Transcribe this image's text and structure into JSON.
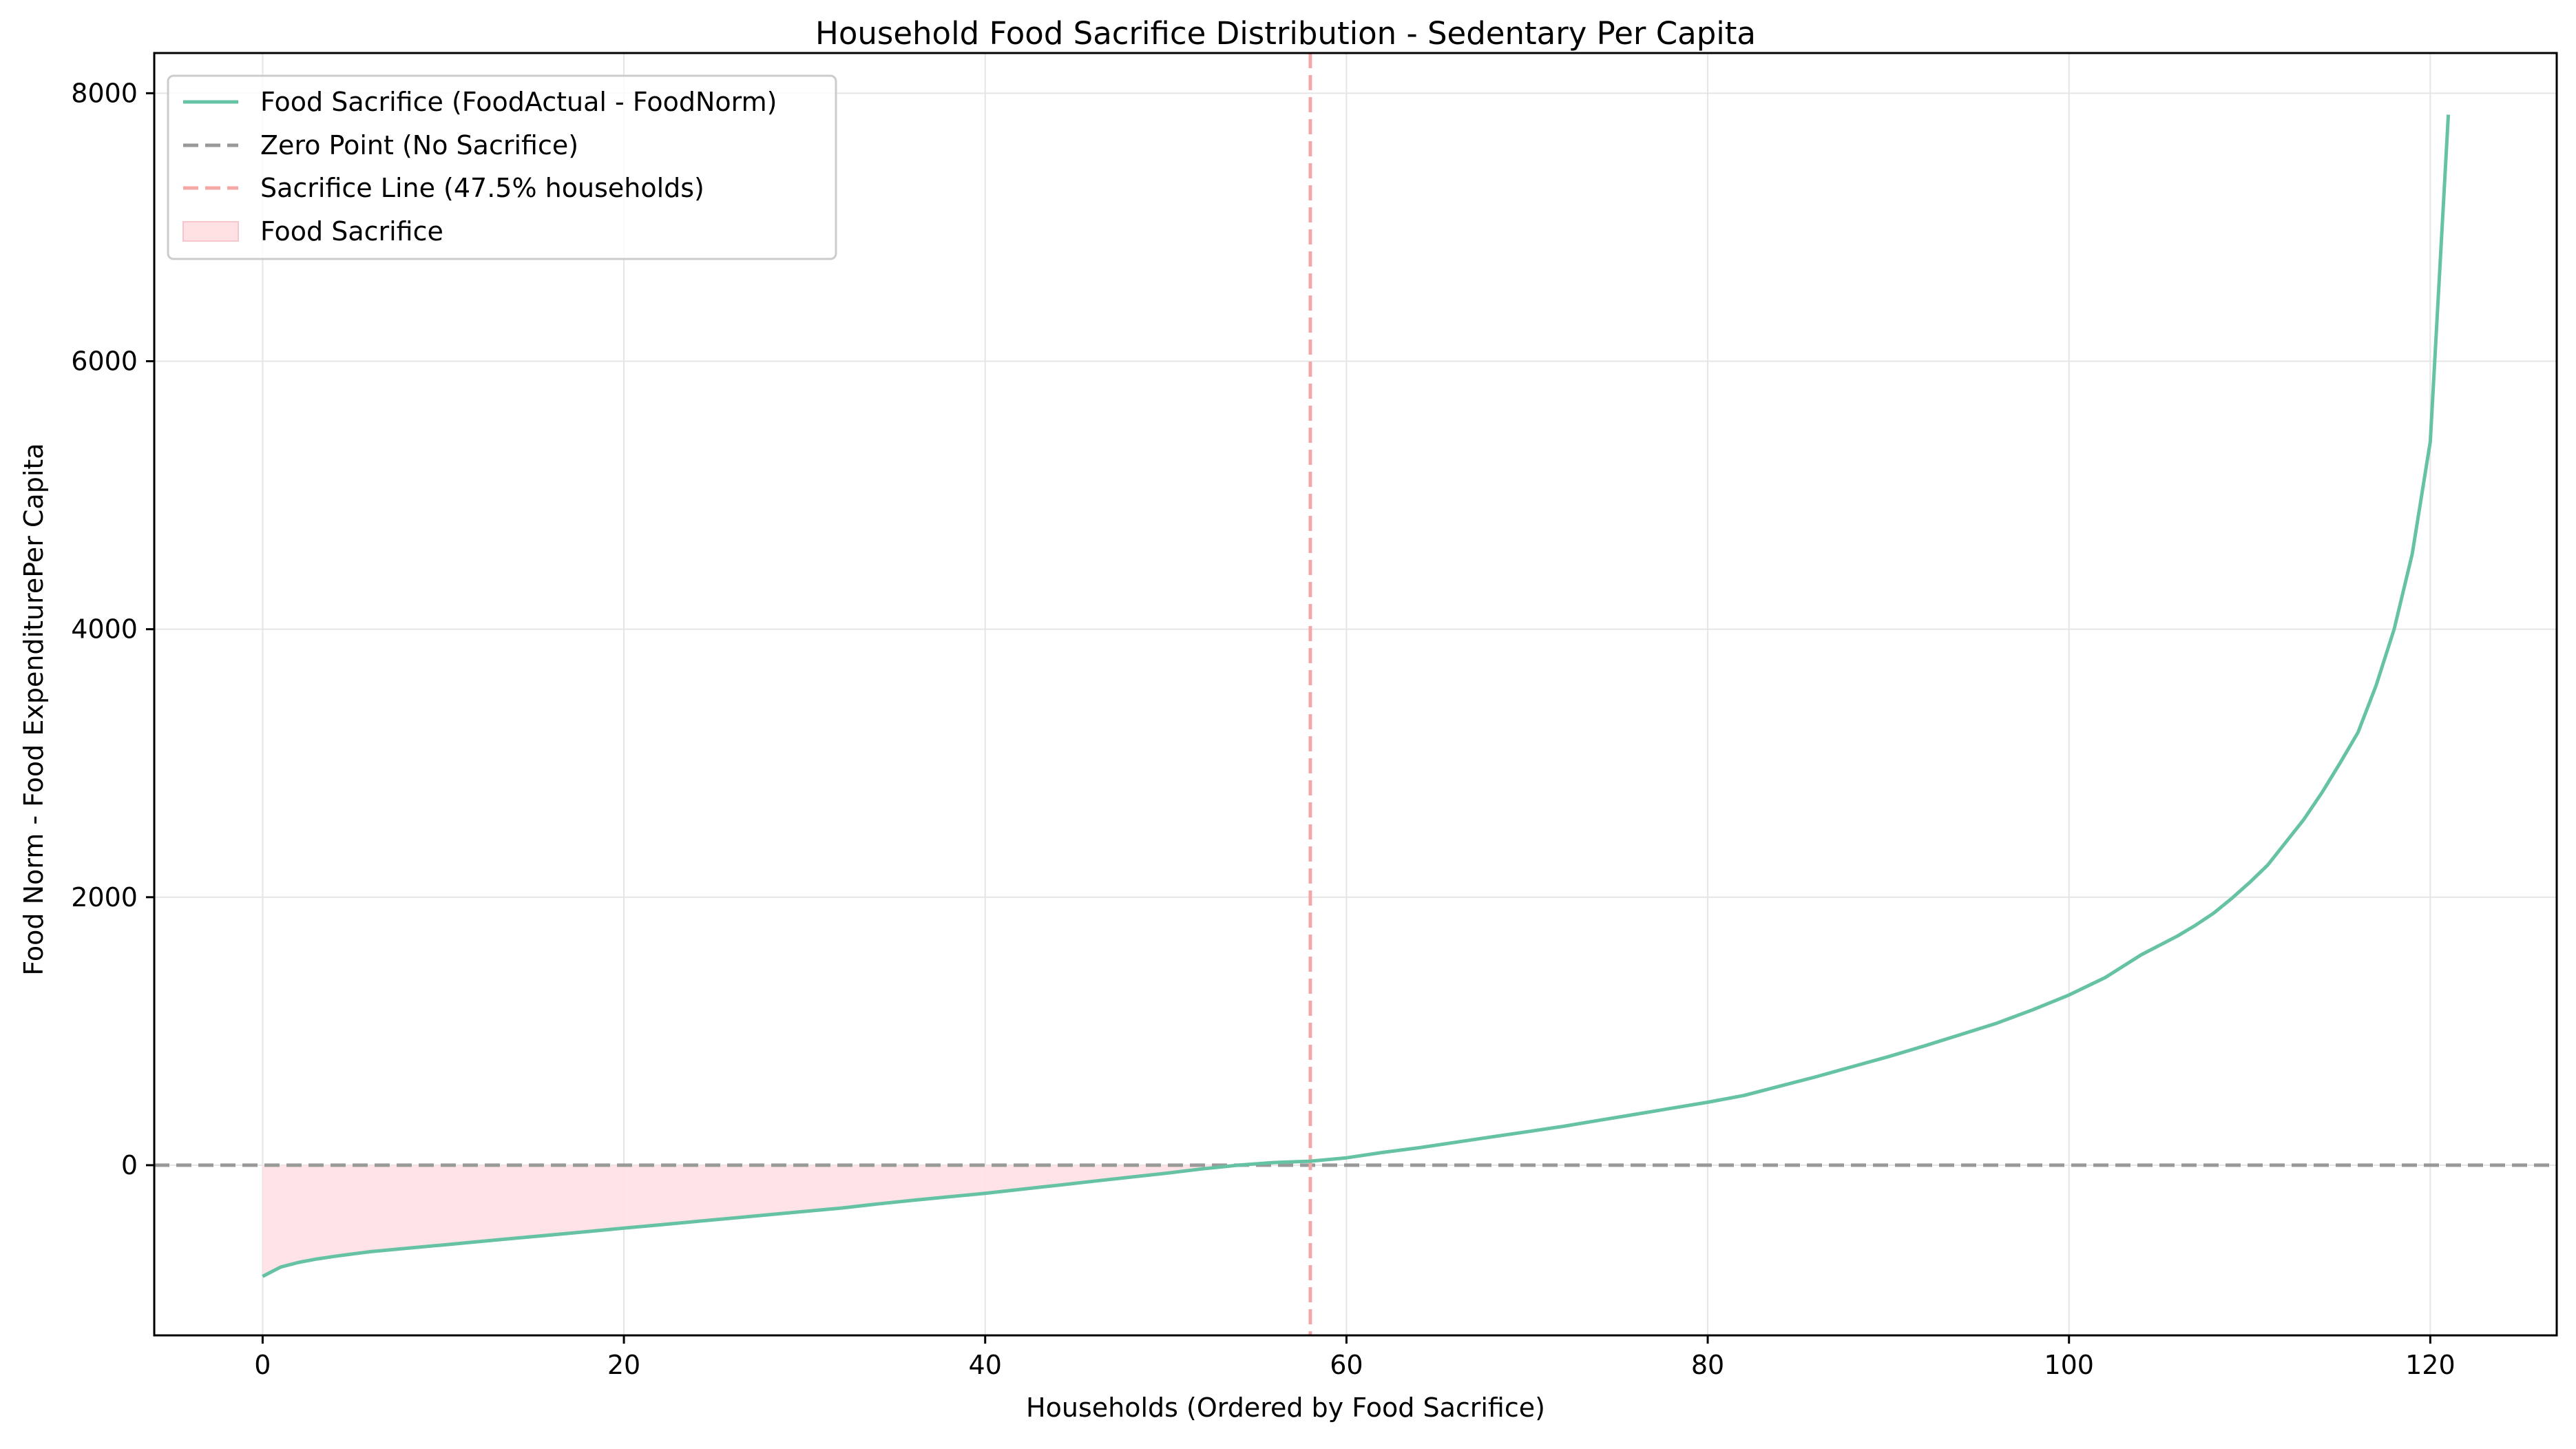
{
  "chart_data": {
    "type": "line",
    "title": "Household Food Sacrifice Distribution - Sedentary Per Capita",
    "xlabel": "Households (Ordered by Food Sacrifice)",
    "ylabel": "Food Norm - Food ExpenditurePer Capita",
    "xlim": [
      -6,
      127
    ],
    "ylim": [
      -1270,
      8300
    ],
    "xticks": [
      0,
      20,
      40,
      60,
      80,
      100,
      120
    ],
    "yticks": [
      0,
      2000,
      4000,
      6000,
      8000
    ],
    "grid": true,
    "legend_position": "top-left",
    "legend": [
      {
        "label": "Food Sacrifice (FoodActual - FoodNorm)",
        "kind": "line",
        "color": "#66c2a5"
      },
      {
        "label": "Zero Point (No Sacrifice)",
        "kind": "dashed",
        "color": "#999999"
      },
      {
        "label": "Sacrifice Line (47.5% households)",
        "kind": "dashed",
        "color": "#f4a7a7"
      },
      {
        "label": "Food Sacrifice",
        "kind": "fill",
        "color": "#ffe0e3"
      }
    ],
    "reference_lines": {
      "zero_y": 0,
      "sacrifice_x": 58
    },
    "series": [
      {
        "name": "Food Sacrifice (FoodActual - FoodNorm)",
        "color": "#66c2a5",
        "x": [
          0,
          1,
          2,
          3,
          4,
          5,
          6,
          8,
          10,
          12,
          14,
          16,
          18,
          20,
          22,
          24,
          26,
          28,
          30,
          32,
          34,
          36,
          38,
          40,
          42,
          44,
          46,
          48,
          50,
          52,
          54,
          56,
          58,
          60,
          62,
          64,
          66,
          68,
          70,
          72,
          74,
          76,
          78,
          80,
          82,
          84,
          86,
          88,
          90,
          92,
          94,
          96,
          98,
          100,
          102,
          104,
          106,
          107,
          108,
          109,
          110,
          111,
          112,
          113,
          114,
          115,
          116,
          117,
          118,
          119,
          120,
          121
        ],
        "values": [
          -830,
          -760,
          -725,
          -700,
          -680,
          -662,
          -645,
          -620,
          -595,
          -570,
          -545,
          -520,
          -495,
          -470,
          -445,
          -420,
          -395,
          -370,
          -345,
          -320,
          -290,
          -262,
          -236,
          -210,
          -180,
          -150,
          -120,
          -90,
          -60,
          -28,
          0,
          20,
          30,
          55,
          95,
          130,
          170,
          210,
          250,
          290,
          335,
          380,
          425,
          470,
          520,
          590,
          660,
          735,
          810,
          890,
          975,
          1060,
          1160,
          1270,
          1400,
          1570,
          1710,
          1790,
          1880,
          1990,
          2110,
          2240,
          2410,
          2580,
          2780,
          3000,
          3230,
          3580,
          4000,
          4560,
          5400,
          7840
        ]
      }
    ]
  }
}
